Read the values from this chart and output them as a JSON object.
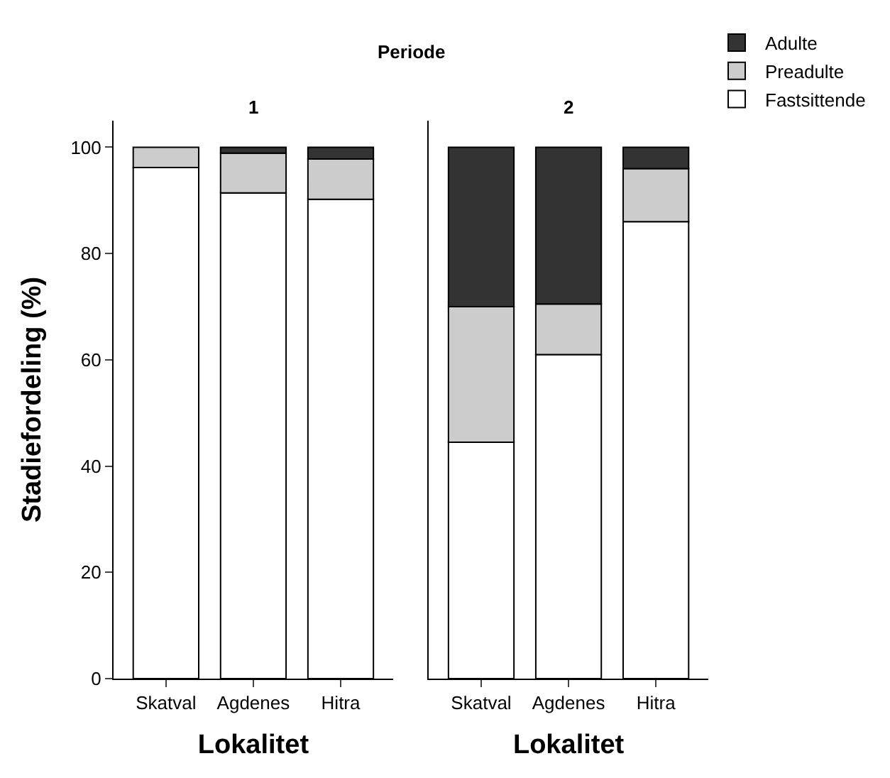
{
  "chart_data": [
    {
      "type": "bar",
      "stacked": true,
      "title": "1",
      "xlabel": "Lokalitet",
      "ylabel": "Stadiefordeling (%)",
      "categories": [
        "Skatval",
        "Agdenes",
        "Hitra"
      ],
      "series": [
        {
          "name": "Fastsittende",
          "color": "#ffffff",
          "values": [
            96.2,
            91.4,
            90.2
          ]
        },
        {
          "name": "Preadulte",
          "color": "#cccccc",
          "values": [
            3.8,
            7.5,
            7.6
          ]
        },
        {
          "name": "Adulte",
          "color": "#333333",
          "values": [
            null,
            1.1,
            2.2
          ]
        }
      ],
      "ylim": [
        0,
        105
      ],
      "yticks": [
        0,
        20,
        40,
        60,
        80,
        100
      ],
      "legend": "top right",
      "legend_title": "Periode"
    },
    {
      "type": "bar",
      "stacked": true,
      "title": "2",
      "xlabel": "Lokalitet",
      "categories": [
        "Skatval",
        "Agdenes",
        "Hitra"
      ],
      "series": [
        {
          "color": "#ffffff",
          "values": [
            44.5,
            61,
            86
          ]
        },
        {
          "color": "#cccccc",
          "values": [
            25.5,
            9.5,
            10
          ]
        },
        {
          "color": "#333333",
          "values": [
            30,
            29.5,
            4
          ]
        }
      ],
      "ylim": [
        0,
        105
      ],
      "tick_labels": "x"
    }
  ]
}
